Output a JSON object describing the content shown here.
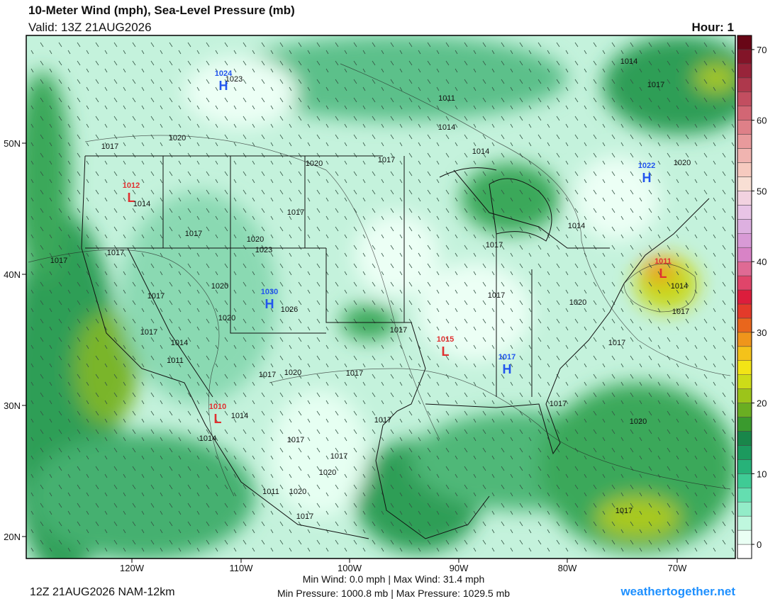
{
  "header": {
    "title": "10-Meter Wind (mph), Sea-Level Pressure (mb)",
    "valid": "Valid: 13Z 21AUG2026",
    "hour": "Hour: 1"
  },
  "map": {
    "lat_labels": [
      "50N",
      "40N",
      "30N",
      "20N"
    ],
    "lon_labels": [
      "120W",
      "110W",
      "100W",
      "90W",
      "80W",
      "70W"
    ],
    "centers": [
      {
        "kind": "H",
        "pressure": 1024,
        "color": "#2255ee"
      },
      {
        "kind": "L",
        "pressure": 1012,
        "color": "#e03030"
      },
      {
        "kind": "H",
        "pressure": 1030,
        "color": "#2255ee"
      },
      {
        "kind": "L",
        "pressure": 1010,
        "color": "#e03030"
      },
      {
        "kind": "L",
        "pressure": 1015,
        "color": "#e03030"
      },
      {
        "kind": "H",
        "pressure": 1017,
        "color": "#2255ee"
      },
      {
        "kind": "H",
        "pressure": 1022,
        "color": "#2255ee"
      },
      {
        "kind": "L",
        "pressure": 1011,
        "color": "#e03030"
      }
    ],
    "isobar_labels": [
      1023,
      1017,
      1020,
      1020,
      1017,
      1014,
      1017,
      1017,
      1020,
      1023,
      1017,
      1017,
      1020,
      1017,
      1026,
      1020,
      1017,
      1014,
      1011,
      1017,
      1020,
      1017,
      1017,
      1017,
      1020,
      1017,
      1014,
      1017,
      1017,
      1020,
      1014,
      1014,
      1017,
      1017,
      1017,
      1020,
      1011,
      1020,
      1017,
      1017,
      1011,
      1014,
      1014,
      1017,
      1014,
      1017,
      1020,
      1014
    ]
  },
  "colorbar": {
    "lim": [
      -2,
      72
    ],
    "ticks": [
      0,
      10,
      20,
      30,
      40,
      50,
      60,
      70
    ],
    "colors": [
      "#ffffff",
      "#eafff4",
      "#bff7de",
      "#93ecc8",
      "#64deb0",
      "#3fcb95",
      "#27b279",
      "#1c9a5e",
      "#19864a",
      "#3a9a2e",
      "#6aae22",
      "#9cc41a",
      "#cddc18",
      "#f2e416",
      "#f4c21a",
      "#ef951b",
      "#e9661c",
      "#e33a2a",
      "#dc1d3c",
      "#e0456a",
      "#df6a94",
      "#d883c6",
      "#d89ad6",
      "#ddb0e0",
      "#e8c4e6",
      "#f2d2e0",
      "#f8dfd4",
      "#f6cabf",
      "#f0b4b0",
      "#e89a9c",
      "#de8088",
      "#d26674",
      "#c24e60",
      "#ae384c",
      "#98243a",
      "#821428",
      "#680616"
    ]
  },
  "footer": {
    "run": "12Z 21AUG2026 NAM-12km",
    "wind": "Min Wind: 0.0 mph | Max Wind: 31.4 mph",
    "pressure": "Min Pressure: 1000.8 mb | Max Pressure: 1029.5 mb",
    "site": "weathertogether.net"
  }
}
